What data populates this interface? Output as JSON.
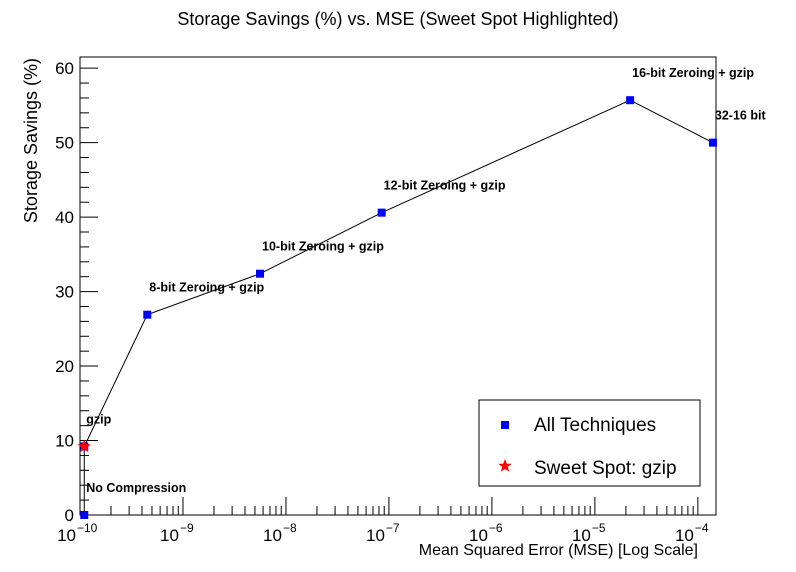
{
  "chart_data": {
    "type": "scatter",
    "title": "Storage Savings (%) vs. MSE (Sweet Spot Highlighted)",
    "xlabel": "Mean Squared Error (MSE) [Log Scale]",
    "ylabel": "Storage Savings (%)",
    "x_scale": "log",
    "xlim": [
      1e-10,
      0.00015
    ],
    "ylim": [
      0,
      61.5
    ],
    "y_ticks": [
      0,
      10,
      20,
      30,
      40,
      50,
      60
    ],
    "x_tick_labels": [
      {
        "value": 1e-10,
        "base": "10",
        "exp": "−10"
      },
      {
        "value": 1e-09,
        "base": "10",
        "exp": "−9"
      },
      {
        "value": 1e-08,
        "base": "10",
        "exp": "−8"
      },
      {
        "value": 1e-07,
        "base": "10",
        "exp": "−7"
      },
      {
        "value": 1e-06,
        "base": "10",
        "exp": "−6"
      },
      {
        "value": 1e-05,
        "base": "10",
        "exp": "−5"
      },
      {
        "value": 0.0001,
        "base": "10",
        "exp": "−4"
      }
    ],
    "series": [
      {
        "name": "All Techniques",
        "color": "#0000ff",
        "marker": "square",
        "points": [
          {
            "x": 1.1e-10,
            "y": 0,
            "label": "No Compression"
          },
          {
            "x": 1.1e-10,
            "y": 9.2,
            "label": "gzip"
          },
          {
            "x": 4.5e-10,
            "y": 26.9,
            "label": "8-bit Zeroing + gzip"
          },
          {
            "x": 5.6e-09,
            "y": 32.4,
            "label": "10-bit Zeroing + gzip"
          },
          {
            "x": 8.5e-08,
            "y": 40.6,
            "label": "12-bit Zeroing + gzip"
          },
          {
            "x": 2.2e-05,
            "y": 55.7,
            "label": "16-bit Zeroing + gzip"
          },
          {
            "x": 0.00014,
            "y": 50.0,
            "label": "32-16 bit"
          }
        ]
      },
      {
        "name": "Sweet Spot: gzip",
        "color": "#ff0000",
        "marker": "star",
        "points": [
          {
            "x": 1.1e-10,
            "y": 9.2
          }
        ]
      }
    ],
    "legend": {
      "placement": "bottom-right"
    },
    "grid": false
  }
}
